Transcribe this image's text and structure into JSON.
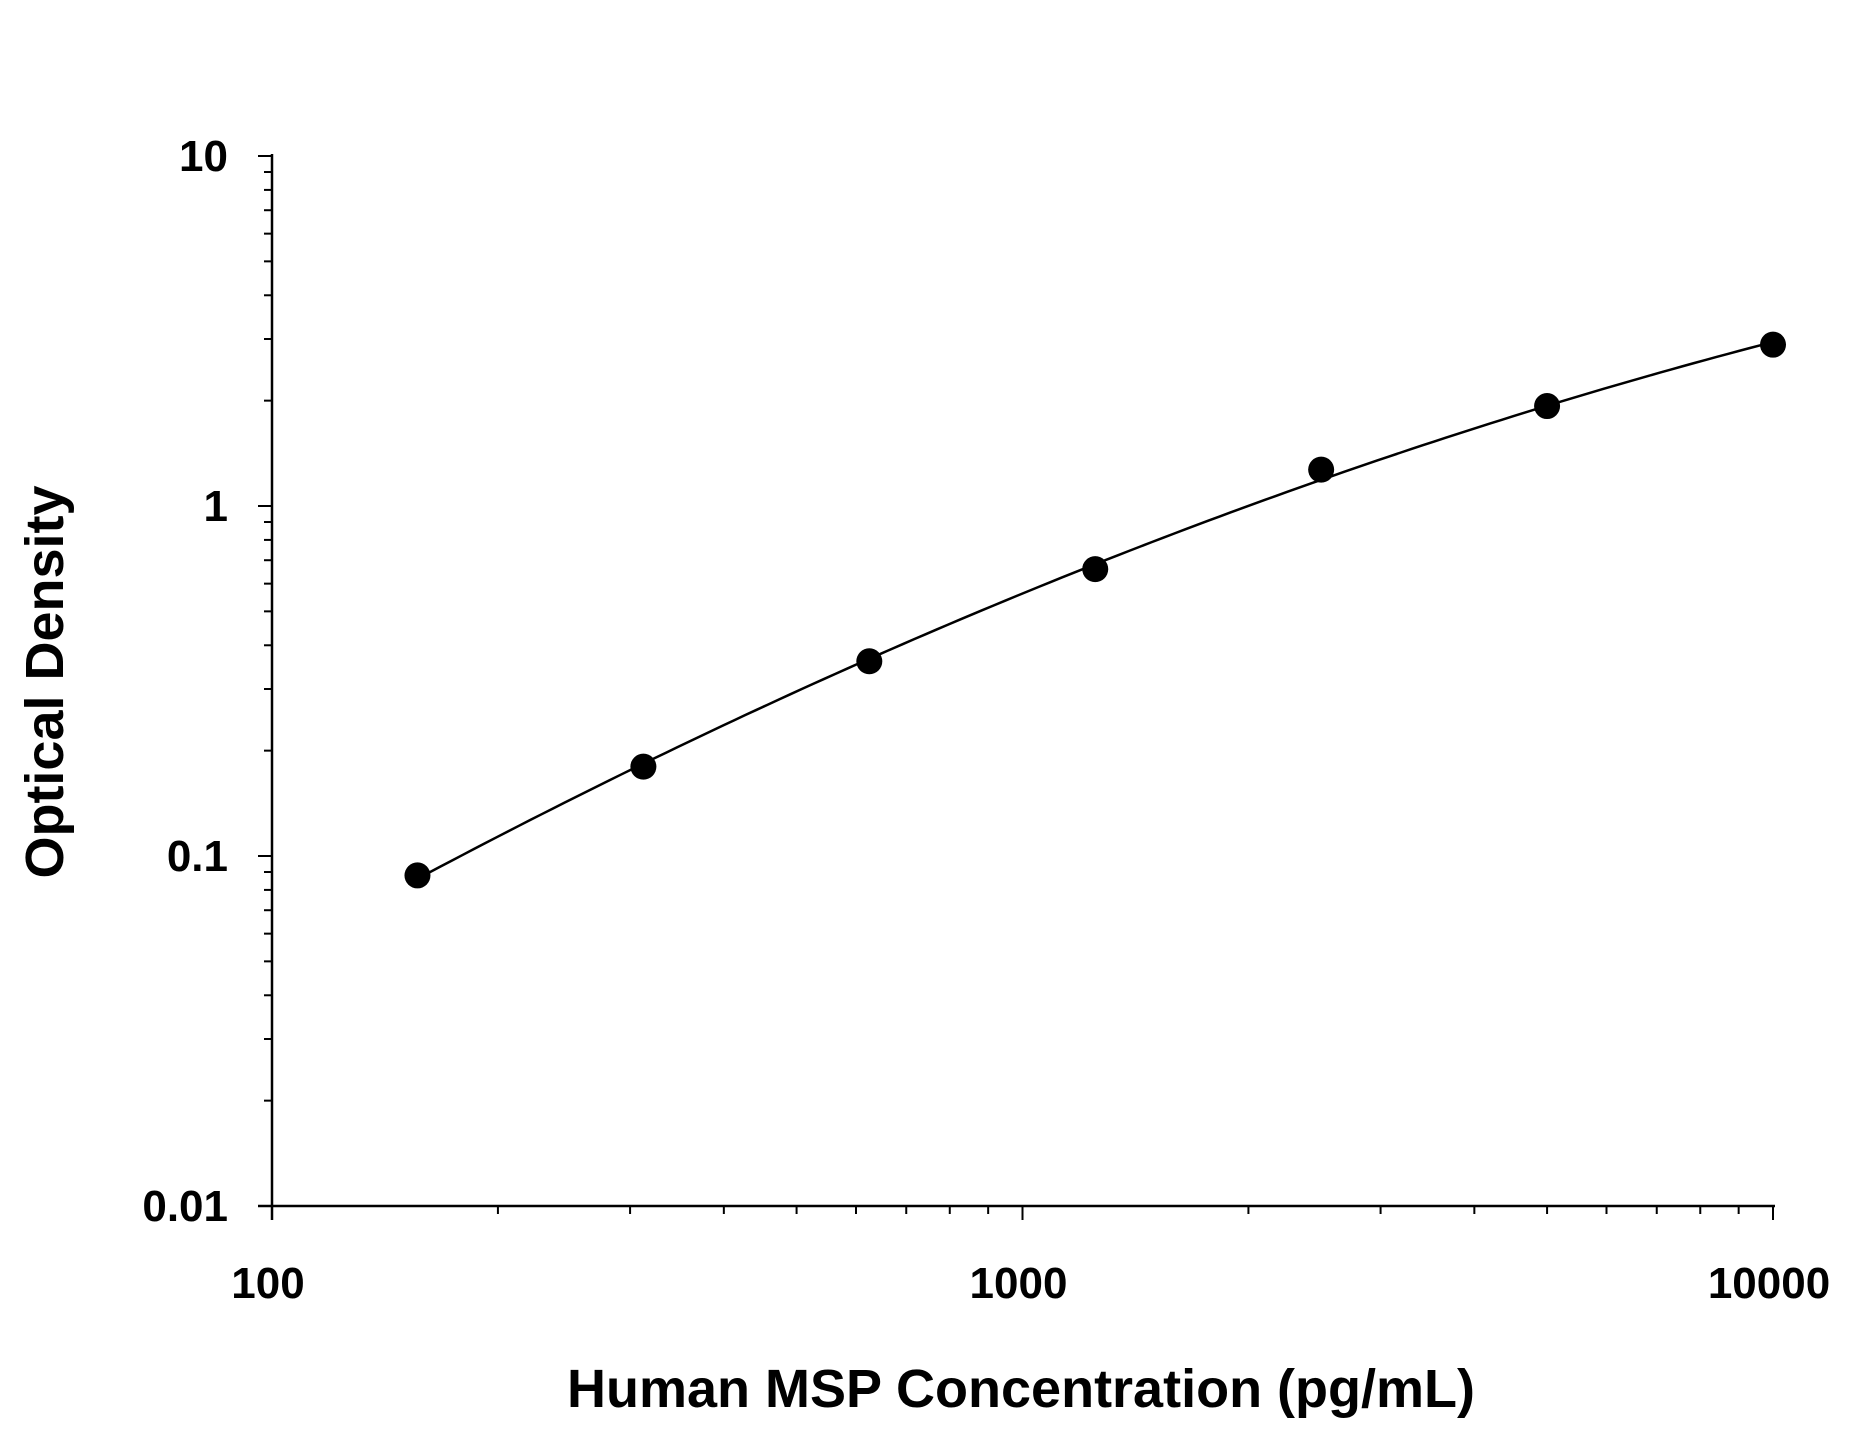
{
  "chart_data": {
    "type": "scatter",
    "title": "",
    "xlabel": "Human MSP Concentration (pg/mL)",
    "ylabel": "Optical Density",
    "x_scale": "log",
    "y_scale": "log",
    "xlim": [
      100,
      10000
    ],
    "ylim": [
      0.01,
      10
    ],
    "x_ticks": [
      100,
      1000,
      10000
    ],
    "x_tick_labels": [
      "100",
      "1000",
      "10000"
    ],
    "y_ticks": [
      0.01,
      0.1,
      1,
      10
    ],
    "y_tick_labels": [
      "0.01",
      "0.1",
      "1",
      "10"
    ],
    "grid": false,
    "legend": "none",
    "has_fit_curve": true,
    "series": [
      {
        "x": [
          156.25,
          312.5,
          625,
          1250,
          2500,
          5000,
          10000
        ],
        "y": [
          0.088,
          0.18,
          0.36,
          0.66,
          1.27,
          1.93,
          2.89
        ]
      }
    ],
    "colors": {
      "marker": "#000000",
      "curve": "#000000",
      "axis": "#000000"
    }
  }
}
